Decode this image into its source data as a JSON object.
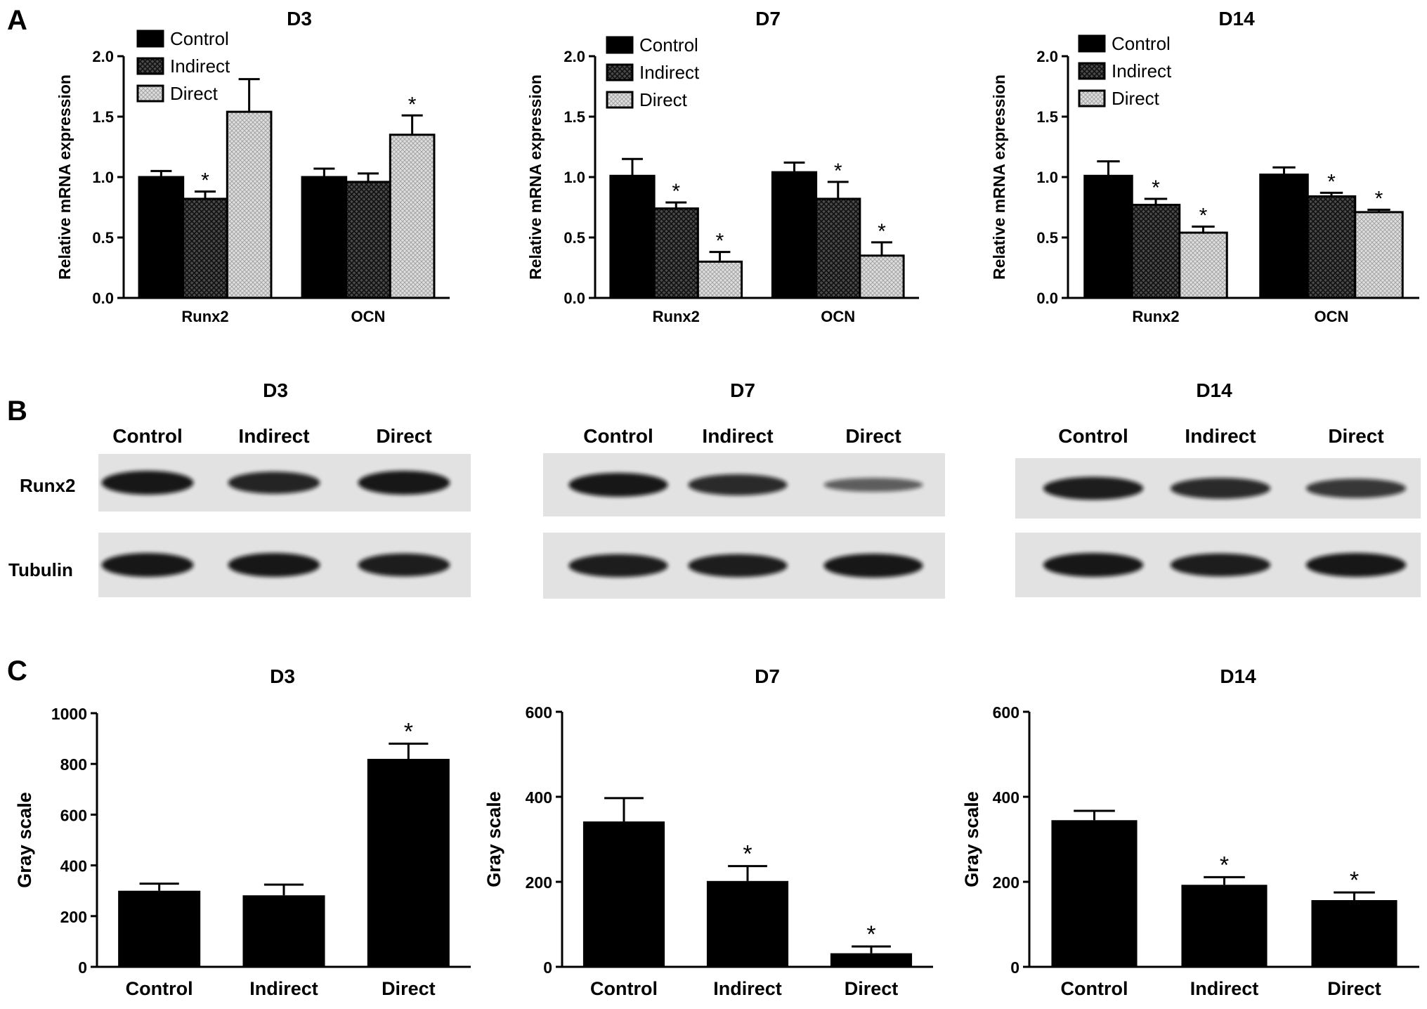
{
  "panel_labels": [
    "A",
    "B",
    "C"
  ],
  "legend": [
    "Control",
    "Indirect",
    "Direct"
  ],
  "colors": {
    "control": "#000000",
    "indirect": "#3a3a3a",
    "direct": "#dcdcdc",
    "axis": "#000000",
    "blot_bg": "#e2e2e2",
    "band": "#111111"
  },
  "western": {
    "titles": [
      "D3",
      "D7",
      "D14"
    ],
    "lane_labels": [
      "Control",
      "Indirect",
      "Direct"
    ],
    "row_labels": [
      "Runx2",
      "Tubulin"
    ],
    "band_intensity": [
      [
        [
          1.0,
          0.9,
          1.0
        ],
        [
          1.0,
          1.0,
          0.95
        ]
      ],
      [
        [
          1.0,
          0.85,
          0.45
        ],
        [
          0.95,
          0.95,
          1.0
        ]
      ],
      [
        [
          0.95,
          0.85,
          0.75
        ],
        [
          1.0,
          0.95,
          1.0
        ]
      ]
    ]
  },
  "chart_data": [
    {
      "type": "bar",
      "title": "D3",
      "xlabel": "",
      "ylabel": "Relative mRNA expression",
      "categories": [
        "Runx2",
        "OCN"
      ],
      "ylim": [
        0,
        2.0
      ],
      "yticks": [
        0.0,
        0.5,
        1.0,
        1.5,
        2.0
      ],
      "series": [
        {
          "name": "Control",
          "values": [
            1.0,
            1.0
          ],
          "errors": [
            0.05,
            0.07
          ],
          "sig": [
            false,
            false
          ]
        },
        {
          "name": "Indirect",
          "values": [
            0.82,
            0.96
          ],
          "errors": [
            0.06,
            0.07
          ],
          "sig": [
            true,
            false
          ]
        },
        {
          "name": "Direct",
          "values": [
            1.54,
            1.35
          ],
          "errors": [
            0.27,
            0.16
          ],
          "sig": [
            false,
            true
          ]
        }
      ],
      "legend_position": "top-left",
      "grid": false
    },
    {
      "type": "bar",
      "title": "D7",
      "xlabel": "",
      "ylabel": "Relative mRNA expression",
      "categories": [
        "Runx2",
        "OCN"
      ],
      "ylim": [
        0,
        2.0
      ],
      "yticks": [
        0.0,
        0.5,
        1.0,
        1.5,
        2.0
      ],
      "series": [
        {
          "name": "Control",
          "values": [
            1.01,
            1.04
          ],
          "errors": [
            0.14,
            0.08
          ],
          "sig": [
            false,
            false
          ]
        },
        {
          "name": "Indirect",
          "values": [
            0.74,
            0.82
          ],
          "errors": [
            0.05,
            0.14
          ],
          "sig": [
            true,
            true
          ]
        },
        {
          "name": "Direct",
          "values": [
            0.3,
            0.35
          ],
          "errors": [
            0.08,
            0.11
          ],
          "sig": [
            true,
            true
          ]
        }
      ],
      "legend_position": "top-left",
      "grid": false
    },
    {
      "type": "bar",
      "title": "D14",
      "xlabel": "",
      "ylabel": "Relative mRNA expression",
      "categories": [
        "Runx2",
        "OCN"
      ],
      "ylim": [
        0,
        2.0
      ],
      "yticks": [
        0.0,
        0.5,
        1.0,
        1.5,
        2.0
      ],
      "series": [
        {
          "name": "Control",
          "values": [
            1.01,
            1.02
          ],
          "errors": [
            0.12,
            0.06
          ],
          "sig": [
            false,
            false
          ]
        },
        {
          "name": "Indirect",
          "values": [
            0.77,
            0.84
          ],
          "errors": [
            0.05,
            0.03
          ],
          "sig": [
            true,
            true
          ]
        },
        {
          "name": "Direct",
          "values": [
            0.54,
            0.71
          ],
          "errors": [
            0.05,
            0.02
          ],
          "sig": [
            true,
            true
          ]
        }
      ],
      "legend_position": "top-left",
      "grid": false
    },
    {
      "type": "bar",
      "title": "D3",
      "xlabel": "",
      "ylabel": "Gray scale",
      "categories": [
        "Control",
        "Indirect",
        "Direct"
      ],
      "ylim": [
        0,
        1000
      ],
      "yticks": [
        0,
        200,
        400,
        600,
        800,
        1000
      ],
      "values": [
        300,
        282,
        820
      ],
      "errors": [
        28,
        42,
        60
      ],
      "sig": [
        false,
        false,
        true
      ],
      "grid": false
    },
    {
      "type": "bar",
      "title": "D7",
      "xlabel": "",
      "ylabel": "Gray scale",
      "categories": [
        "Control",
        "Indirect",
        "Direct"
      ],
      "ylim": [
        0,
        600
      ],
      "yticks": [
        0,
        200,
        400,
        600
      ],
      "values": [
        342,
        202,
        32
      ],
      "errors": [
        55,
        35,
        16
      ],
      "sig": [
        false,
        true,
        true
      ],
      "grid": false
    },
    {
      "type": "bar",
      "title": "D14",
      "xlabel": "",
      "ylabel": "Gray scale",
      "categories": [
        "Control",
        "Indirect",
        "Direct"
      ],
      "ylim": [
        0,
        600
      ],
      "yticks": [
        0,
        200,
        400,
        600
      ],
      "values": [
        345,
        193,
        157
      ],
      "errors": [
        22,
        18,
        18
      ],
      "sig": [
        false,
        true,
        true
      ],
      "grid": false
    }
  ]
}
